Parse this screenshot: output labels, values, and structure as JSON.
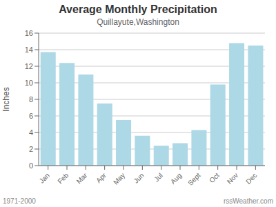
{
  "chart_data": {
    "type": "bar",
    "title": "Average Monthly Precipitation",
    "subtitle": "Quillayute,Washington",
    "ylabel": "Inches",
    "categories": [
      "Jan",
      "Feb",
      "Mar",
      "Apr",
      "May",
      "Jun",
      "Jul",
      "Aug",
      "Sept",
      "Oct",
      "Nov",
      "Dec"
    ],
    "values": [
      13.7,
      12.4,
      11.0,
      7.5,
      5.5,
      3.6,
      2.4,
      2.7,
      4.3,
      9.8,
      14.8,
      14.5
    ],
    "color": "#add8e6",
    "ylim": [
      0,
      16
    ],
    "yticks": [
      0,
      2,
      4,
      6,
      8,
      10,
      12,
      14,
      16
    ],
    "grid": true,
    "annotations": [
      "1971-2000",
      "rssWeather.com"
    ]
  }
}
